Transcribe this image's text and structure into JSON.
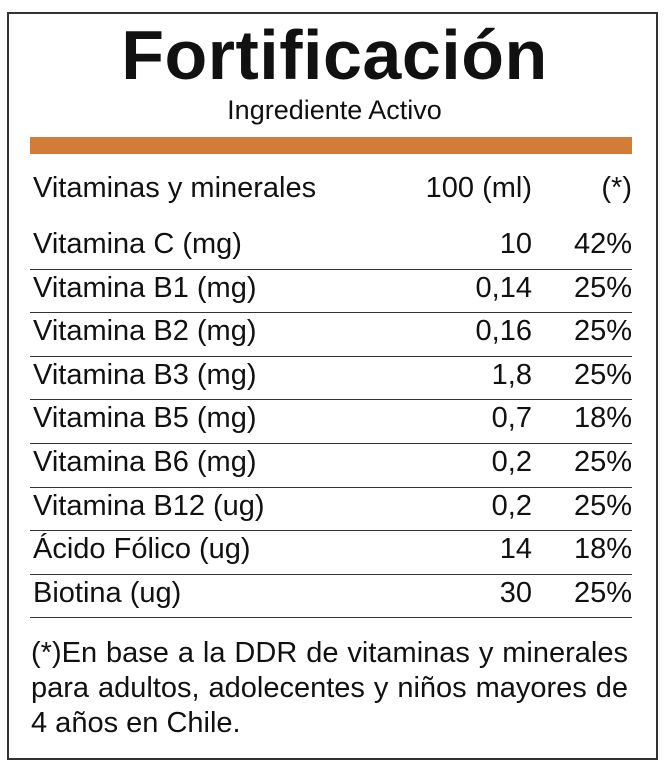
{
  "title": "Fortificación",
  "subtitle": "Ingrediente Activo",
  "accent_color": "#d27c38",
  "header": {
    "name": "Vitaminas y minerales",
    "amount": "100 (ml)",
    "percent": "(*)"
  },
  "rows": [
    {
      "name": "Vitamina C (mg)",
      "amount": "10",
      "percent": "42%"
    },
    {
      "name": "Vitamina B1 (mg)",
      "amount": "0,14",
      "percent": "25%"
    },
    {
      "name": "Vitamina B2 (mg)",
      "amount": "0,16",
      "percent": "25%"
    },
    {
      "name": "Vitamina B3 (mg)",
      "amount": "1,8",
      "percent": "25%"
    },
    {
      "name": "Vitamina B5 (mg)",
      "amount": "0,7",
      "percent": "18%"
    },
    {
      "name": "Vitamina B6 (mg)",
      "amount": "0,2",
      "percent": "25%"
    },
    {
      "name": "Vitamina B12 (ug)",
      "amount": "0,2",
      "percent": "25%"
    },
    {
      "name": "Ácido Fólico (ug)",
      "amount": "14",
      "percent": "18%"
    },
    {
      "name": "Biotina (ug)",
      "amount": "30",
      "percent": "25%"
    }
  ],
  "footnote": "(*)En base a la DDR de vitaminas y minerales para adultos, adolecentes y niños mayores de 4 años en Chile."
}
